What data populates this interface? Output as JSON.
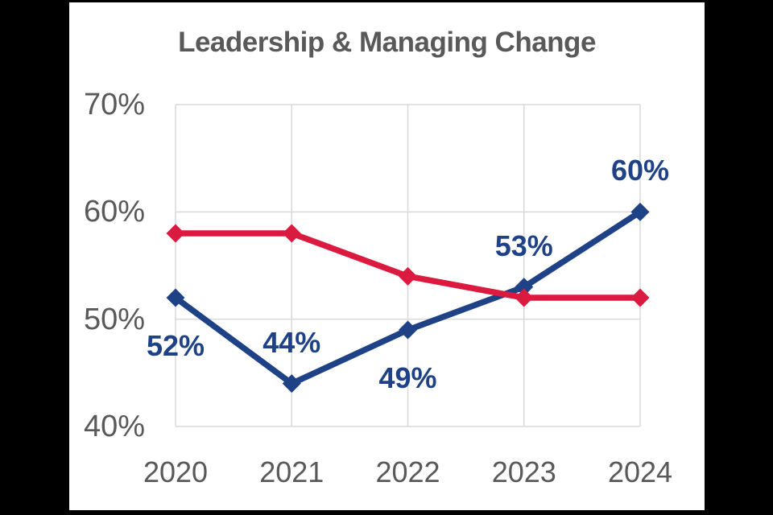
{
  "frame": {
    "background": "#000000",
    "card_background": "#ffffff"
  },
  "chart_data": {
    "type": "line",
    "title": "Leadership & Managing Change",
    "categories": [
      "2020",
      "2021",
      "2022",
      "2023",
      "2024"
    ],
    "series": [
      {
        "id": "blue",
        "color": "#1F4287",
        "values": [
          52,
          44,
          49,
          53,
          60
        ],
        "data_labels": [
          {
            "text": "52%",
            "position": "below"
          },
          {
            "text": "44%",
            "position": "above"
          },
          {
            "text": "49%",
            "position": "below"
          },
          {
            "text": "53%",
            "position": "above"
          },
          {
            "text": "60%",
            "position": "above"
          }
        ]
      },
      {
        "id": "red",
        "color": "#DB1A40",
        "values": [
          58,
          58,
          54,
          52,
          52
        ],
        "data_labels": []
      }
    ],
    "ylim": [
      40,
      70
    ],
    "yticks": [
      {
        "value": 70,
        "label": "70%"
      },
      {
        "value": 60,
        "label": "60%"
      },
      {
        "value": 50,
        "label": "50%"
      },
      {
        "value": 40,
        "label": "40%"
      }
    ],
    "grid": true,
    "legend": false,
    "marker": "diamond",
    "xlabel": "",
    "ylabel": "",
    "colors": {
      "title": "#595959",
      "axis_labels": "#595959",
      "gridline": "#D9D9D9"
    }
  }
}
